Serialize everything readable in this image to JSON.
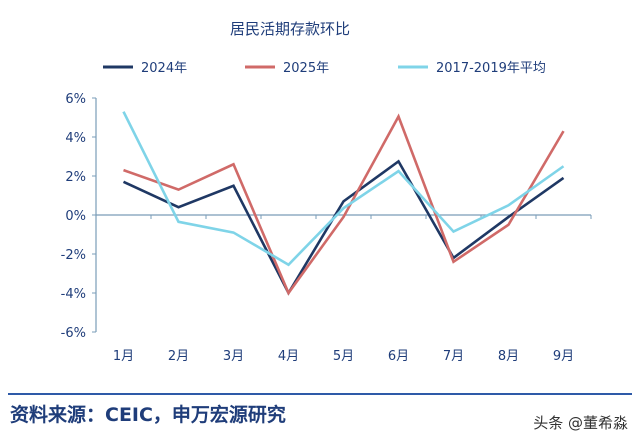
{
  "chart_data": {
    "type": "line",
    "title": "居民活期存款环比",
    "categories": [
      "1月",
      "2月",
      "3月",
      "4月",
      "5月",
      "6月",
      "7月",
      "8月",
      "9月"
    ],
    "series": [
      {
        "name": "2024年",
        "color": "#1f3864",
        "values": [
          1.7,
          0.4,
          1.5,
          -4.0,
          0.7,
          2.75,
          -2.2,
          -0.1,
          1.9
        ]
      },
      {
        "name": "2025年",
        "color": "#d06a68",
        "values": [
          2.3,
          1.3,
          2.6,
          -4.0,
          -0.1,
          5.05,
          -2.4,
          -0.5,
          4.3
        ]
      },
      {
        "name": "2017-2019年平均",
        "color": "#7fd4e8",
        "values": [
          5.3,
          -0.35,
          -0.9,
          -2.55,
          0.35,
          2.25,
          -0.85,
          0.5,
          2.5
        ]
      }
    ],
    "yticks": [
      "6%",
      "4%",
      "2%",
      "0%",
      "-2%",
      "-4%",
      "-6%"
    ],
    "ylim": [
      -6,
      6
    ],
    "ylabel": "",
    "xlabel": "",
    "grid": false,
    "legend": "top"
  },
  "footer": {
    "source": "资料来源：CEIC，申万宏源研究",
    "watermark": "头条 @董希淼"
  }
}
